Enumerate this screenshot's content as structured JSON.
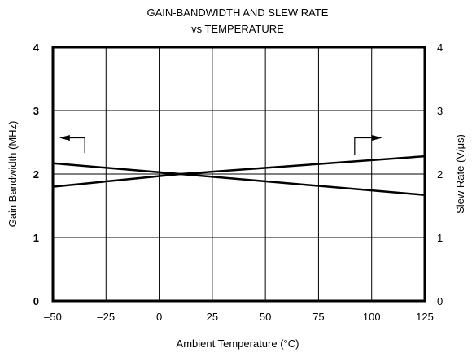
{
  "chart_data": {
    "type": "line",
    "title_line1": "GAIN-BANDWIDTH AND SLEW RATE",
    "title_line2": "vs TEMPERATURE",
    "xlabel": "Ambient Temperature (°C)",
    "ylabel_left": "Gain Bandwidth (MHz)",
    "ylabel_right": "Slew Rate (V/μs)",
    "xlim": [
      -50,
      125
    ],
    "ylim": [
      0,
      4
    ],
    "x_ticks": [
      "–50",
      "–25",
      "0",
      "25",
      "50",
      "75",
      "100",
      "125"
    ],
    "x_tick_values": [
      -50,
      -25,
      0,
      25,
      50,
      75,
      100,
      125
    ],
    "y_ticks_left": [
      "0",
      "1",
      "2",
      "3",
      "4"
    ],
    "y_ticks_right": [
      "0",
      "1",
      "2",
      "3",
      "4"
    ],
    "y_tick_values": [
      0,
      1,
      2,
      3,
      4
    ],
    "grid": true,
    "series": [
      {
        "axis": "left",
        "x": [
          -50,
          10,
          125
        ],
        "values": [
          2.17,
          2.0,
          1.67
        ]
      },
      {
        "axis": "right",
        "x": [
          -50,
          10,
          125
        ],
        "values": [
          1.8,
          2.0,
          2.28
        ]
      }
    ],
    "annotations": [
      {
        "points_to": "left",
        "x": -35,
        "y_start": 2.33,
        "y_end": 2.57,
        "x_end": -47
      },
      {
        "points_to": "right",
        "x": 92,
        "y_start": 2.3,
        "y_end": 2.57,
        "x_end": 105
      }
    ],
    "colors": {
      "line": "#000000",
      "grid": "#000000",
      "background": "#ffffff"
    }
  }
}
